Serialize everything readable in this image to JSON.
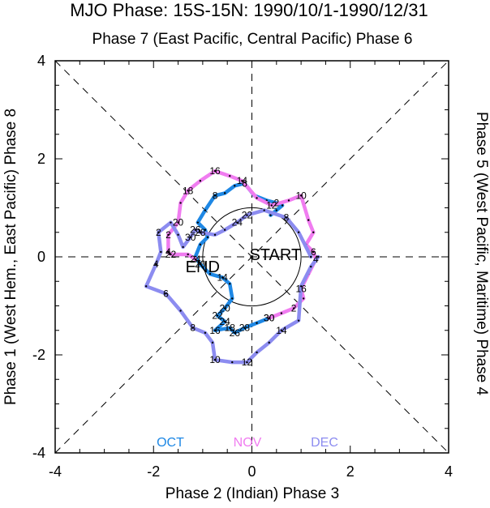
{
  "chart_data": {
    "type": "line",
    "title": "MJO Phase: 15S-15N: 1990/10/1-1990/12/31",
    "top_axis_label": "Phase 7 (East Pacific, Central Pacific) Phase 6",
    "bottom_axis_label": "Phase 2 (Indian) Phase 3",
    "left_axis_label": "Phase 1 (West Hem., East Pacific) Phase 8",
    "right_axis_label": "Phase 5 (West Pacific, Maritime) Phase 4",
    "xlim": [
      -4,
      4
    ],
    "ylim": [
      -4,
      4
    ],
    "x_ticks": [
      "-4",
      "-2",
      "0",
      "2",
      "4"
    ],
    "y_ticks": [
      "-4",
      "-2",
      "0",
      "2",
      "4"
    ],
    "unit_circle_radius": 1,
    "guides": "dashed diagonals and axes",
    "start_label": "START",
    "end_label": "END",
    "series": [
      {
        "name": "OCT",
        "color": "#1e88e5",
        "points": [
          {
            "x": 0.38,
            "y": 0.85,
            "label": ""
          },
          {
            "x": 0.5,
            "y": 0.95,
            "label": ""
          },
          {
            "x": 0.62,
            "y": 1.05,
            "label": ""
          },
          {
            "x": 0.5,
            "y": 1.1,
            "label": "2"
          },
          {
            "x": 0.3,
            "y": 1.15,
            "label": ""
          },
          {
            "x": 0.05,
            "y": 1.25,
            "label": ""
          },
          {
            "x": -0.15,
            "y": 1.5,
            "label": "6"
          },
          {
            "x": -0.35,
            "y": 1.45,
            "label": ""
          },
          {
            "x": -0.55,
            "y": 1.3,
            "label": ""
          },
          {
            "x": -0.75,
            "y": 1.25,
            "label": "8"
          },
          {
            "x": -0.95,
            "y": 0.95,
            "label": ""
          },
          {
            "x": -1.1,
            "y": 0.7,
            "label": ""
          },
          {
            "x": -0.95,
            "y": 0.55,
            "label": ""
          },
          {
            "x": -0.9,
            "y": 0.4,
            "label": ""
          },
          {
            "x": -1.05,
            "y": 0.25,
            "label": ""
          },
          {
            "x": -1.15,
            "y": 0.0,
            "label": ""
          },
          {
            "x": -1.05,
            "y": -0.15,
            "label": "20"
          },
          {
            "x": -0.85,
            "y": -0.35,
            "label": ""
          },
          {
            "x": -0.6,
            "y": -0.42,
            "label": "14"
          },
          {
            "x": -0.45,
            "y": -0.55,
            "label": ""
          },
          {
            "x": -0.4,
            "y": -0.85,
            "label": ""
          },
          {
            "x": -0.55,
            "y": -1.05,
            "label": "20"
          },
          {
            "x": -0.7,
            "y": -1.2,
            "label": "22"
          },
          {
            "x": -0.55,
            "y": -1.32,
            "label": "24"
          },
          {
            "x": -0.75,
            "y": -1.5,
            "label": "16"
          },
          {
            "x": -0.45,
            "y": -1.45,
            "label": "18"
          },
          {
            "x": -0.35,
            "y": -1.55,
            "label": "26"
          },
          {
            "x": -0.15,
            "y": -1.45,
            "label": "28"
          },
          {
            "x": 0.1,
            "y": -1.35,
            "label": ""
          },
          {
            "x": 0.35,
            "y": -1.25,
            "label": "30"
          }
        ]
      },
      {
        "name": "NOV",
        "color": "#f07cf0",
        "points": [
          {
            "x": 0.35,
            "y": -1.25,
            "label": "30"
          },
          {
            "x": 0.6,
            "y": -1.15,
            "label": ""
          },
          {
            "x": 0.85,
            "y": -1.05,
            "label": "2"
          },
          {
            "x": 1.05,
            "y": -0.85,
            "label": ""
          },
          {
            "x": 1.0,
            "y": -0.65,
            "label": "16"
          },
          {
            "x": 1.15,
            "y": -0.35,
            "label": ""
          },
          {
            "x": 1.3,
            "y": -0.05,
            "label": "4"
          },
          {
            "x": 1.25,
            "y": 0.1,
            "label": "6"
          },
          {
            "x": 1.1,
            "y": 0.25,
            "label": ""
          },
          {
            "x": 1.25,
            "y": 0.5,
            "label": ""
          },
          {
            "x": 1.15,
            "y": 0.75,
            "label": ""
          },
          {
            "x": 1.0,
            "y": 1.25,
            "label": "10"
          },
          {
            "x": 0.75,
            "y": 1.15,
            "label": ""
          },
          {
            "x": 0.4,
            "y": 1.05,
            "label": "12"
          },
          {
            "x": 0.1,
            "y": 1.2,
            "label": ""
          },
          {
            "x": -0.2,
            "y": 1.55,
            "label": "14"
          },
          {
            "x": -0.45,
            "y": 1.65,
            "label": ""
          },
          {
            "x": -0.75,
            "y": 1.75,
            "label": "16"
          },
          {
            "x": -1.05,
            "y": 1.55,
            "label": ""
          },
          {
            "x": -1.3,
            "y": 1.35,
            "label": "18"
          },
          {
            "x": -1.45,
            "y": 1.1,
            "label": ""
          },
          {
            "x": -1.5,
            "y": 0.7,
            "label": "20"
          },
          {
            "x": -1.7,
            "y": 0.45,
            "label": "2"
          },
          {
            "x": -1.7,
            "y": 0.1,
            "label": "4"
          },
          {
            "x": -1.65,
            "y": 0.05,
            "label": "22"
          },
          {
            "x": -1.3,
            "y": 0.05,
            "label": ""
          },
          {
            "x": -1.15,
            "y": -0.05,
            "label": "24"
          }
        ]
      },
      {
        "name": "DEC",
        "color": "#8c8cf0",
        "points": [
          {
            "x": 1.2,
            "y": 0.0,
            "label": ""
          },
          {
            "x": 0.95,
            "y": 0.5,
            "label": ""
          },
          {
            "x": 0.7,
            "y": 0.8,
            "label": "8"
          },
          {
            "x": 0.25,
            "y": 0.95,
            "label": ""
          },
          {
            "x": -0.1,
            "y": 0.85,
            "label": "22"
          },
          {
            "x": -0.3,
            "y": 0.7,
            "label": "24"
          },
          {
            "x": -0.55,
            "y": 0.55,
            "label": ""
          },
          {
            "x": -0.75,
            "y": 0.45,
            "label": ""
          },
          {
            "x": -1.05,
            "y": 0.5,
            "label": "28"
          },
          {
            "x": -1.15,
            "y": 0.55,
            "label": "26"
          },
          {
            "x": -1.25,
            "y": 0.4,
            "label": "30"
          },
          {
            "x": -1.4,
            "y": 0.2,
            "label": ""
          },
          {
            "x": -1.5,
            "y": 0.45,
            "label": ""
          },
          {
            "x": -1.65,
            "y": 0.7,
            "label": ""
          },
          {
            "x": -1.9,
            "y": 0.5,
            "label": "2"
          },
          {
            "x": -1.85,
            "y": 0.1,
            "label": ""
          },
          {
            "x": -1.95,
            "y": -0.15,
            "label": "4"
          },
          {
            "x": -2.15,
            "y": -0.6,
            "label": ""
          },
          {
            "x": -1.75,
            "y": -0.75,
            "label": "6"
          },
          {
            "x": -1.45,
            "y": -1.1,
            "label": ""
          },
          {
            "x": -1.2,
            "y": -1.45,
            "label": "8"
          },
          {
            "x": -0.95,
            "y": -1.55,
            "label": ""
          },
          {
            "x": -0.8,
            "y": -1.75,
            "label": ""
          },
          {
            "x": -0.75,
            "y": -2.1,
            "label": "10"
          },
          {
            "x": -0.4,
            "y": -2.15,
            "label": ""
          },
          {
            "x": -0.1,
            "y": -2.15,
            "label": "12"
          },
          {
            "x": 0.1,
            "y": -1.95,
            "label": ""
          },
          {
            "x": 0.35,
            "y": -1.75,
            "label": ""
          },
          {
            "x": 0.6,
            "y": -1.5,
            "label": "14"
          },
          {
            "x": 0.95,
            "y": -1.3,
            "label": ""
          },
          {
            "x": 1.0,
            "y": -0.6,
            "label": ""
          },
          {
            "x": 1.2,
            "y": -0.2,
            "label": ""
          },
          {
            "x": 1.35,
            "y": 0.0,
            "label": ""
          }
        ]
      }
    ]
  }
}
